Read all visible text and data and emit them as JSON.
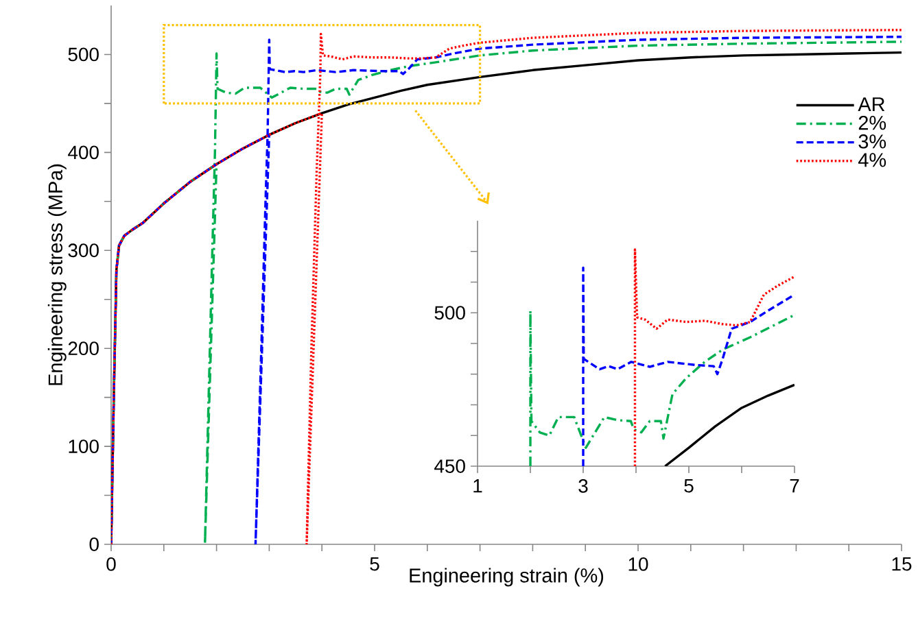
{
  "chart_data": [
    {
      "type": "line",
      "xlabel": "Engineering strain (%)",
      "ylabel": "Engineering stress (MPa)",
      "xlim": [
        0,
        15
      ],
      "ylim": [
        0,
        550
      ],
      "xticks": [
        0,
        {
          "value": 1,
          "label": null
        },
        {
          "value": 2,
          "label": null
        },
        {
          "value": 3,
          "label": null
        },
        {
          "value": 4,
          "label": null
        },
        5,
        {
          "value": 6,
          "label": null
        },
        {
          "value": 7,
          "label": null
        },
        {
          "value": 8,
          "label": null
        },
        {
          "value": 9,
          "label": null
        },
        10,
        {
          "value": 11,
          "label": null
        },
        {
          "value": 12,
          "label": null
        },
        {
          "value": 13,
          "label": null
        },
        {
          "value": 14,
          "label": null
        },
        15
      ],
      "yticks": [
        0,
        {
          "value": 50,
          "label": null
        },
        100,
        {
          "value": 150,
          "label": null
        },
        200,
        {
          "value": 250,
          "label": null
        },
        300,
        {
          "value": 350,
          "label": null
        },
        400,
        {
          "value": 450,
          "label": null
        },
        500
      ],
      "legend": "top right",
      "series": [
        {
          "name": "AR",
          "color": "#000000",
          "line_style": "solid",
          "x": [
            0,
            0.05,
            0.1,
            0.15,
            0.25,
            0.4,
            0.6,
            1,
            1.5,
            2,
            2.5,
            3,
            3.5,
            4,
            4.5,
            5,
            5.5,
            6,
            6.5,
            7,
            8,
            9,
            10,
            11,
            12,
            13,
            14,
            15
          ],
          "values": [
            0,
            150,
            280,
            305,
            315,
            321,
            328,
            348,
            370,
            388,
            404,
            418,
            430,
            440,
            449,
            456,
            463,
            469,
            473,
            477,
            484,
            489,
            494,
            497,
            499,
            500,
            501,
            502
          ]
        },
        {
          "name": "2%",
          "color": "#00b050",
          "line_style": "dashdot",
          "x": [
            0,
            0.05,
            0.1,
            0.15,
            0.25,
            0.4,
            0.6,
            1,
            1.5,
            2,
            1.78,
            1.85,
            1.92,
            1.97,
            2.0,
            2.02,
            2.18,
            2.36,
            2.53,
            2.83,
            3.05,
            3.4,
            3.65,
            3.9,
            3.96,
            4.1,
            4.26,
            4.47,
            4.52,
            4.69,
            4.95,
            5.3,
            5.64,
            6.16,
            7,
            8,
            10,
            12,
            15
          ],
          "values": [
            0,
            150,
            280,
            305,
            315,
            321,
            328,
            348,
            370,
            388,
            0,
            150,
            300,
            400,
            501,
            465,
            461,
            460,
            466,
            466,
            456,
            466,
            465,
            465,
            462,
            461,
            465,
            465,
            459,
            474,
            479,
            484,
            488,
            492,
            499,
            504,
            509,
            511,
            513
          ]
        },
        {
          "name": "3%",
          "color": "#0000ff",
          "line_style": "dashed",
          "x": [
            0,
            0.05,
            0.1,
            0.15,
            0.25,
            0.4,
            0.6,
            1,
            1.5,
            2,
            2.5,
            3,
            2.74,
            2.85,
            2.93,
            2.97,
            3.0,
            3.01,
            3.31,
            3.48,
            3.65,
            3.91,
            4.26,
            4.6,
            5.12,
            5.47,
            5.54,
            5.64,
            5.81,
            6.16,
            6.5,
            7,
            8,
            10,
            12,
            15
          ],
          "values": [
            0,
            150,
            280,
            305,
            315,
            321,
            328,
            348,
            370,
            388,
            404,
            418,
            0,
            200,
            350,
            420,
            515,
            485,
            482,
            483,
            482,
            484,
            482,
            484,
            483,
            483,
            480,
            485,
            495,
            497,
            501,
            506,
            510,
            515,
            517,
            518
          ]
        },
        {
          "name": "4%",
          "color": "#ff0000",
          "line_style": "dotted",
          "x": [
            0,
            0.05,
            0.1,
            0.15,
            0.25,
            0.4,
            0.6,
            1,
            1.5,
            2,
            2.5,
            3,
            3.5,
            4,
            3.71,
            3.8,
            3.9,
            3.97,
            3.98,
            4.02,
            4.17,
            4.39,
            4.6,
            4.95,
            5.3,
            5.64,
            5.9,
            6.16,
            6.42,
            6.68,
            7,
            8,
            10,
            12,
            15
          ],
          "values": [
            0,
            150,
            280,
            305,
            315,
            321,
            328,
            348,
            370,
            388,
            404,
            418,
            430,
            440,
            0,
            200,
            380,
            480,
            521,
            499,
            498,
            495,
            498,
            497,
            497,
            496,
            496,
            497,
            506,
            509,
            512,
            517,
            522,
            524,
            525
          ]
        }
      ]
    },
    {
      "type": "line",
      "xlim": [
        1,
        7
      ],
      "ylim": [
        450,
        530
      ],
      "xticks": [
        1,
        {
          "value": 2,
          "label": null
        },
        3,
        {
          "value": 4,
          "label": null
        },
        5,
        {
          "value": 6,
          "label": null
        },
        7
      ],
      "yticks": [
        450,
        {
          "value": 460,
          "label": null
        },
        {
          "value": 470,
          "label": null
        },
        {
          "value": 480,
          "label": null
        },
        {
          "value": 490,
          "label": null
        },
        500,
        {
          "value": 510,
          "label": null
        },
        {
          "value": 520,
          "label": null
        }
      ],
      "series": [
        {
          "color": "#000000",
          "line_style": "solid",
          "x": [
            4.55,
            5,
            5.5,
            6,
            6.5,
            7
          ],
          "values": [
            450,
            456,
            463,
            469,
            473,
            476.5
          ]
        },
        {
          "color": "#00b050",
          "line_style": "dashdot",
          "x": [
            2.0,
            2.0,
            2.02,
            2.18,
            2.36,
            2.53,
            2.83,
            3.05,
            3.4,
            3.65,
            3.9,
            3.96,
            4.1,
            4.26,
            4.47,
            4.52,
            4.69,
            4.95,
            5.3,
            5.64,
            6.16,
            7
          ],
          "values": [
            450,
            500.7,
            464.7,
            461,
            460,
            466,
            466,
            456,
            466,
            465,
            464.7,
            462,
            461,
            464.7,
            464.7,
            459,
            473.5,
            478.7,
            484,
            488,
            492,
            499.3
          ]
        },
        {
          "color": "#0000ff",
          "line_style": "dashed",
          "x": [
            3.0,
            3.0,
            3.01,
            3.31,
            3.48,
            3.65,
            3.91,
            4.26,
            4.6,
            5.12,
            5.47,
            5.54,
            5.64,
            5.81,
            6.16,
            6.5,
            7
          ],
          "values": [
            450,
            514.7,
            485,
            481.6,
            482.6,
            481.6,
            484,
            482.4,
            484,
            483,
            482.6,
            480,
            485,
            494.8,
            497,
            500.7,
            505.9
          ]
        },
        {
          "color": "#ff0000",
          "line_style": "dotted",
          "x": [
            3.98,
            3.98,
            4.02,
            4.17,
            4.39,
            4.6,
            4.95,
            5.3,
            5.64,
            5.9,
            6.16,
            6.42,
            6.68,
            7
          ],
          "values": [
            450,
            520.6,
            498.5,
            497.8,
            494.8,
            497.8,
            497,
            497.4,
            496.3,
            495.9,
            497,
            505.9,
            508.8,
            511.8
          ]
        }
      ]
    }
  ]
}
